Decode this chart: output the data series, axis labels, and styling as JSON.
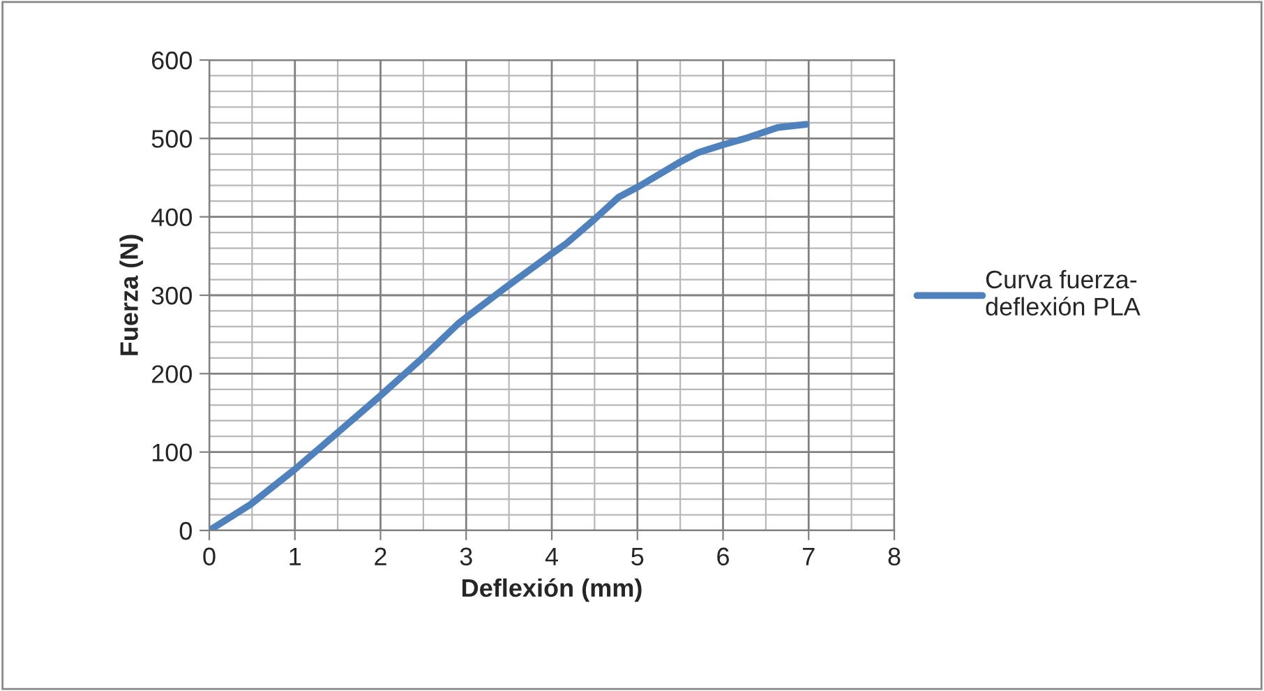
{
  "chart_data": {
    "type": "line",
    "xlabel": "Deflexión (mm)",
    "ylabel": "Fuerza (N)",
    "x": [
      0,
      0.48,
      1,
      1.3,
      2,
      2.46,
      2.92,
      3.45,
      4,
      4.17,
      4.5,
      4.78,
      5.02,
      5.5,
      5.71,
      6,
      6.29,
      6.64,
      6.97
    ],
    "series": [
      {
        "name": "Curva fuerza-deflexión PLA",
        "color": "#4f81bd",
        "values": [
          0,
          33,
          78,
          106,
          172,
          217,
          265,
          309,
          353,
          366,
          397,
          425,
          439,
          470,
          482,
          492,
          501,
          514,
          518
        ]
      }
    ],
    "xlim": [
      0,
      8
    ],
    "xticks": [
      0,
      1,
      2,
      3,
      4,
      5,
      6,
      7,
      8
    ],
    "ylim": [
      0,
      600
    ],
    "yticks": [
      0,
      100,
      200,
      300,
      400,
      500,
      600
    ],
    "grid": true,
    "legend": "right",
    "marker": "none",
    "line_style": "solid"
  }
}
